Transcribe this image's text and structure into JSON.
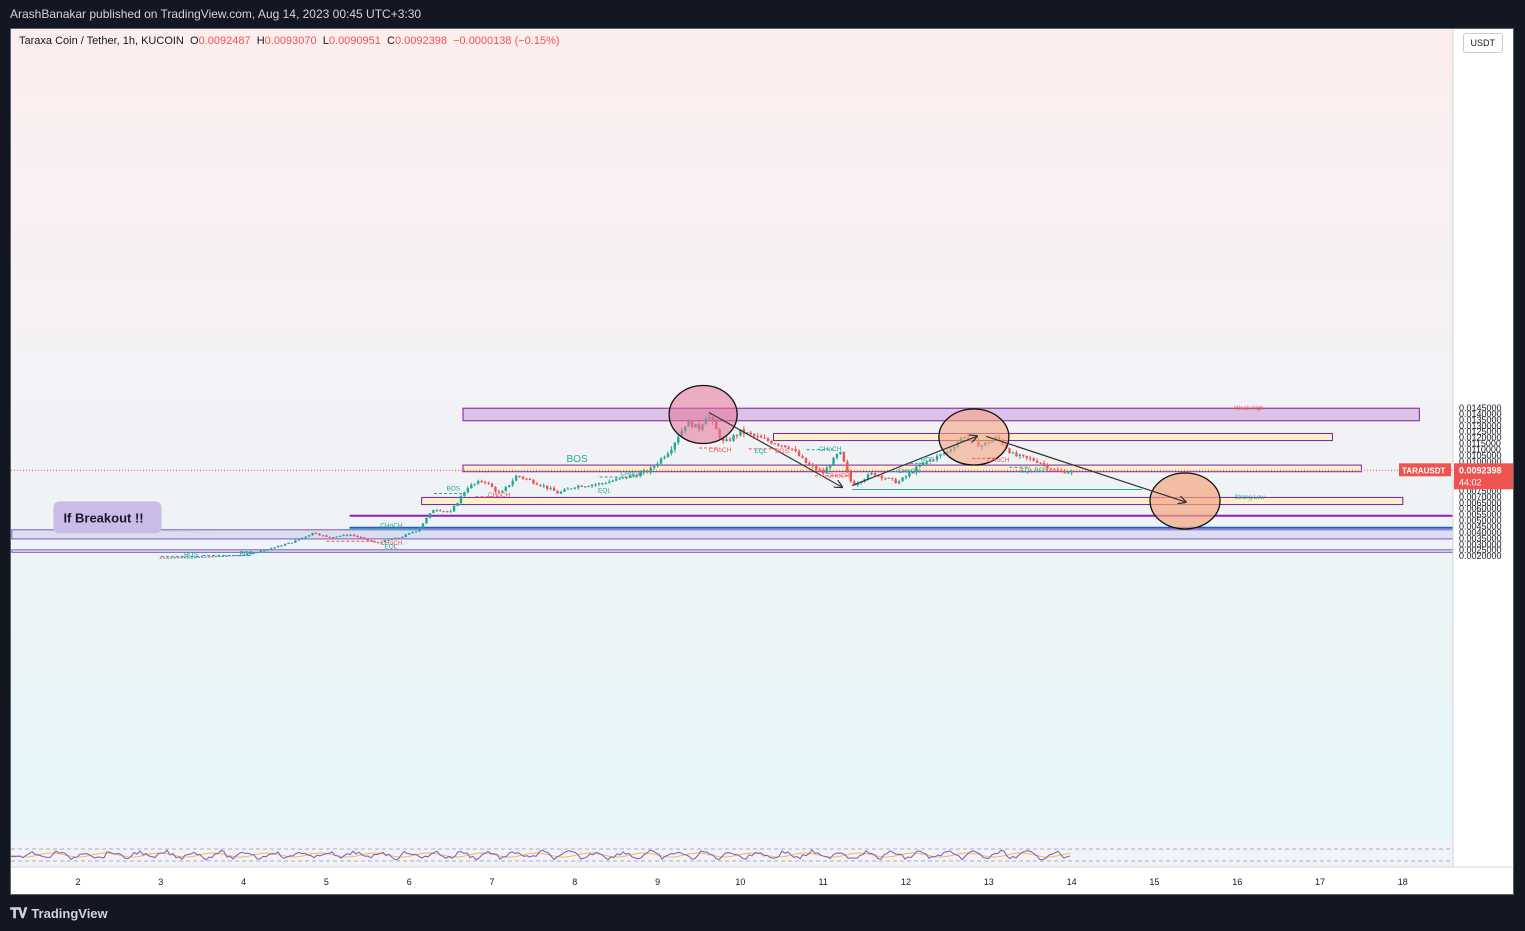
{
  "header": {
    "title": "ArashBanakar published on TradingView.com, Aug 14, 2023 00:45 UTC+3:30"
  },
  "legend": {
    "symbol": "Taraxa Coin / Tether, 1h, KUCOIN",
    "o_label": "O",
    "o": "0.0092487",
    "h_label": "H",
    "h": "0.0093070",
    "l_label": "L",
    "l": "0.0090951",
    "c_label": "C",
    "c": "0.0092398",
    "change": "−0.0000138 (−0.15%)"
  },
  "currency_button": "USDT",
  "footer": {
    "brand": "TradingView",
    "logo_icon": "tv-logo-icon"
  },
  "colors": {
    "up": "#26a69a",
    "down": "#ef5350",
    "purple_zone": "#d4b3e0",
    "yellow_zone": "#faf0c0",
    "lavender_zone": "#d8dcf0",
    "blue_line": "#1e5fcc",
    "purple_line": "#8e24aa"
  },
  "chart_data": {
    "type": "candlestick",
    "title": "",
    "ylim": [
      0.0017,
      0.0148
    ],
    "x_ticks": [
      "2",
      "3",
      "4",
      "5",
      "6",
      "7",
      "8",
      "9",
      "10",
      "11",
      "12",
      "13",
      "14",
      "15",
      "16",
      "17",
      "18"
    ],
    "y_ticks": [
      "0.0020000",
      "0.0025000",
      "0.0030000",
      "0.0035000",
      "0.0040000",
      "0.0045000",
      "0.0050000",
      "0.0055000",
      "0.0060000",
      "0.0065000",
      "0.0070000",
      "0.0075000",
      "0.0080000",
      "0.0085000",
      "0.0095000",
      "0.0100000",
      "0.0105000",
      "0.0110000",
      "0.0115000",
      "0.0120000",
      "0.0125000",
      "0.0130000",
      "0.0135000",
      "0.0140000",
      "0.0145000"
    ],
    "price_path": [
      [
        3.0,
        0.00188
      ],
      [
        3.5,
        0.00192
      ],
      [
        4.0,
        0.0021
      ],
      [
        4.3,
        0.0026
      ],
      [
        4.6,
        0.0032
      ],
      [
        4.85,
        0.004
      ],
      [
        5.0,
        0.0036
      ],
      [
        5.3,
        0.0038
      ],
      [
        5.6,
        0.0031
      ],
      [
        5.9,
        0.0036
      ],
      [
        6.1,
        0.0042
      ],
      [
        6.3,
        0.006
      ],
      [
        6.5,
        0.0057
      ],
      [
        6.7,
        0.0078
      ],
      [
        6.9,
        0.0084
      ],
      [
        7.1,
        0.0072
      ],
      [
        7.3,
        0.0088
      ],
      [
        7.6,
        0.008
      ],
      [
        7.8,
        0.0073
      ],
      [
        8.0,
        0.0079
      ],
      [
        8.3,
        0.0081
      ],
      [
        8.6,
        0.0086
      ],
      [
        8.9,
        0.0092
      ],
      [
        9.15,
        0.011
      ],
      [
        9.35,
        0.0133
      ],
      [
        9.5,
        0.0128
      ],
      [
        9.6,
        0.014
      ],
      [
        9.8,
        0.0115
      ],
      [
        10.0,
        0.0125
      ],
      [
        10.3,
        0.0118
      ],
      [
        10.6,
        0.0112
      ],
      [
        10.8,
        0.0098
      ],
      [
        11.0,
        0.009
      ],
      [
        11.2,
        0.0108
      ],
      [
        11.35,
        0.008
      ],
      [
        11.6,
        0.009
      ],
      [
        11.9,
        0.0082
      ],
      [
        12.2,
        0.0098
      ],
      [
        12.5,
        0.0108
      ],
      [
        12.7,
        0.0122
      ],
      [
        12.9,
        0.0113
      ],
      [
        13.1,
        0.012
      ],
      [
        13.3,
        0.0105
      ],
      [
        13.6,
        0.01
      ],
      [
        13.8,
        0.0092
      ],
      [
        14.0,
        0.0091
      ]
    ],
    "zones": [
      {
        "type": "supply-purple",
        "from": 0.01342,
        "to": 0.01448
      },
      {
        "type": "supply-yellow",
        "from": 0.01175,
        "to": 0.01235
      },
      {
        "type": "mid-yellow",
        "from": 0.00912,
        "to": 0.00968
      },
      {
        "type": "demand-yellow",
        "from": 0.00635,
        "to": 0.00695
      },
      {
        "type": "lavender",
        "from": 0.00345,
        "to": 0.00422
      },
      {
        "type": "lavender-thin",
        "from": 0.00232,
        "to": 0.00253
      }
    ],
    "hlines": [
      {
        "name": "purple-line",
        "value": 0.00541
      },
      {
        "name": "blue-line",
        "value": 0.00439
      },
      {
        "name": "current-price-line",
        "value": 0.00924
      }
    ],
    "price_label": {
      "symbol": "TARAUSDT",
      "value": "0.0092398",
      "countdown": "44:02"
    },
    "annotations": [
      {
        "text": "If Breakout !!",
        "x": 4.3,
        "y": 0.0051
      },
      {
        "text": "BOS",
        "x": 7.9,
        "y": 0.00993
      },
      {
        "text": "Weak High",
        "x": 15.0,
        "y": 0.01465
      },
      {
        "text": "Strong Low",
        "x": 15.0,
        "y": 0.00739
      },
      {
        "text": "BOS",
        "x": 6.45,
        "y": 0.00755
      },
      {
        "text": "CHoCH",
        "x": 6.95,
        "y": 0.00697
      },
      {
        "text": "CHoCH",
        "x": 8.55,
        "y": 0.0088
      },
      {
        "text": "EQL",
        "x": 8.28,
        "y": 0.00735
      },
      {
        "text": "CHoCH",
        "x": 9.62,
        "y": 0.01078
      },
      {
        "text": "EQL",
        "x": 10.17,
        "y": 0.01072
      },
      {
        "text": "BOS",
        "x": 10.42,
        "y": 0.01072
      },
      {
        "text": "CHoCH",
        "x": 10.95,
        "y": 0.01087
      },
      {
        "text": "CHoCH",
        "x": 11.05,
        "y": 0.00865
      },
      {
        "text": "CHoCH",
        "x": 11.9,
        "y": 0.00903
      },
      {
        "text": "BOS",
        "x": 12.18,
        "y": 0.00998
      },
      {
        "text": "CHoCH",
        "x": 12.98,
        "y": 0.00996
      },
      {
        "text": "EQL",
        "x": 13.38,
        "y": 0.00906
      },
      {
        "text": "BOS",
        "x": 13.55,
        "y": 0.00909
      },
      {
        "text": "CHoCH",
        "x": 5.65,
        "y": 0.00292
      },
      {
        "text": "EQL",
        "x": 5.7,
        "y": 0.00264
      },
      {
        "text": "CHoCH",
        "x": 5.65,
        "y": 0.00442
      },
      {
        "text": "BOS",
        "x": 3.28,
        "y": 0.00197
      },
      {
        "text": "BOS",
        "x": 3.95,
        "y": 0.00205
      }
    ]
  }
}
